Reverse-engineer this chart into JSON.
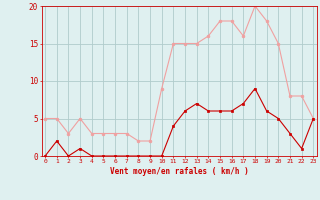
{
  "hours": [
    0,
    1,
    2,
    3,
    4,
    5,
    6,
    7,
    8,
    9,
    10,
    11,
    12,
    13,
    14,
    15,
    16,
    17,
    18,
    19,
    20,
    21,
    22,
    23
  ],
  "wind_avg": [
    0,
    2,
    0,
    1,
    0,
    0,
    0,
    0,
    0,
    0,
    0,
    4,
    6,
    7,
    6,
    6,
    6,
    7,
    9,
    6,
    5,
    3,
    1,
    5
  ],
  "wind_gust": [
    5,
    5,
    3,
    5,
    3,
    3,
    3,
    3,
    2,
    2,
    9,
    15,
    15,
    15,
    16,
    18,
    18,
    16,
    20,
    18,
    15,
    8,
    8,
    5
  ],
  "avg_color": "#cc0000",
  "gust_color": "#f0a0a0",
  "bg_color": "#dff0f0",
  "grid_color": "#b0cccc",
  "xlabel": "Vent moyen/en rafales ( km/h )",
  "ylim": [
    0,
    20
  ],
  "yticks": [
    0,
    5,
    10,
    15,
    20
  ],
  "axis_color": "#cc0000"
}
